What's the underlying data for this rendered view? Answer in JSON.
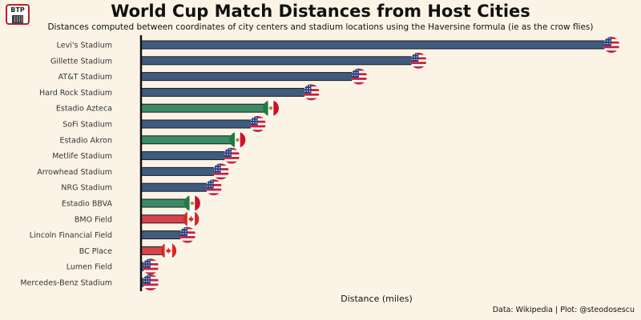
{
  "logo": {
    "text": "BTP"
  },
  "chart_data": {
    "type": "bar",
    "orientation": "horizontal",
    "title": "World Cup Match Distances from Host Cities",
    "subtitle": "Distances computed between coordinates of city centers and stadium locations using the Haversine formula (ie as the crow flies)",
    "xlabel": "Distance (miles)",
    "ylabel": "",
    "caption": "Data: Wikipedia | Plot: @steodosescu",
    "xlim": [
      0,
      40
    ],
    "grid": false,
    "legend": "none",
    "categories": [
      "Levi's Stadium",
      "Gillette Stadium",
      "AT&T Stadium",
      "Hard Rock Stadium",
      "Estadio Azteca",
      "SoFi Stadium",
      "Estadio Akron",
      "Metlife Stadium",
      "Arrowhead Stadium",
      "NRG Stadium",
      "Estadio BBVA",
      "BMO Field",
      "Lincoln Financial Field",
      "BC Place",
      "Lumen Field",
      "Mercedes-Benz Stadium"
    ],
    "values": [
      39.5,
      23.3,
      18.3,
      14.3,
      10.9,
      9.8,
      8.1,
      7.6,
      6.7,
      6.1,
      4.3,
      4.2,
      3.9,
      2.3,
      0.8,
      0.8
    ],
    "countries": [
      "USA",
      "USA",
      "USA",
      "USA",
      "Mexico",
      "USA",
      "Mexico",
      "USA",
      "USA",
      "USA",
      "Mexico",
      "Canada",
      "USA",
      "Canada",
      "USA",
      "USA"
    ],
    "colors": {
      "USA": "#3f5b7e",
      "Mexico": "#3b8a68",
      "Canada": "#d9414f"
    }
  }
}
